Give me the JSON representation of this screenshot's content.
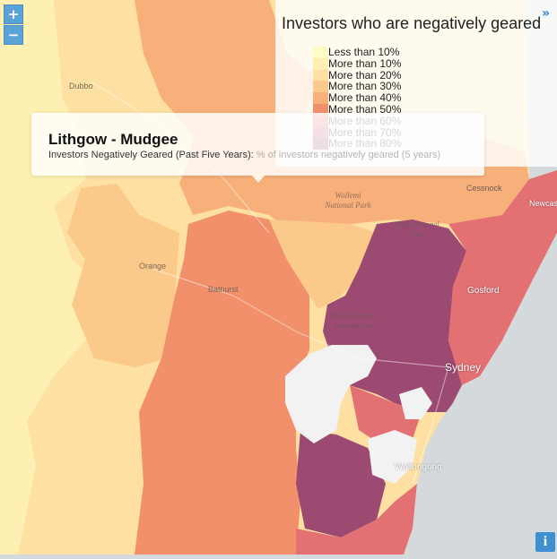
{
  "title": "Investors who are negatively geared",
  "collapse_icon": "double-chevron-right-icon",
  "zoom": {
    "in_label": "+",
    "out_label": "−"
  },
  "legend": {
    "items": [
      {
        "label": "Less than 10%",
        "color": "#fffbc6"
      },
      {
        "label": "More than 10%",
        "color": "#fdf0b2"
      },
      {
        "label": "More than 20%",
        "color": "#fde0a2"
      },
      {
        "label": "More than 30%",
        "color": "#fbca8a"
      },
      {
        "label": "More than 40%",
        "color": "#f7b07a"
      },
      {
        "label": "More than 50%",
        "color": "#f2906c"
      },
      {
        "label": "More than 60%",
        "color": "#e37072"
      },
      {
        "label": "More than 70%",
        "color": "#c45a78"
      },
      {
        "label": "More than 80%",
        "color": "#9c4a72"
      }
    ]
  },
  "tooltip": {
    "region": "Lithgow - Mudgee",
    "measure_label": "Investors Negatively Geared (Past Five Years):",
    "measure_value": "% of investors negatively geared (5 years)"
  },
  "map_labels": {
    "dubbo": "Dubbo",
    "orange": "Orange",
    "bathurst": "Bathurst",
    "cessnock": "Cessnock",
    "gosford": "Gosford",
    "newcastle": "Newcas",
    "sydney": "Sydney",
    "wollongong": "Wollongong",
    "wollemi": "Wollemi National Park",
    "yengo": "Yengo National Park",
    "blue_mountains": "Blue Mountains National Park"
  },
  "info_label": "i"
}
